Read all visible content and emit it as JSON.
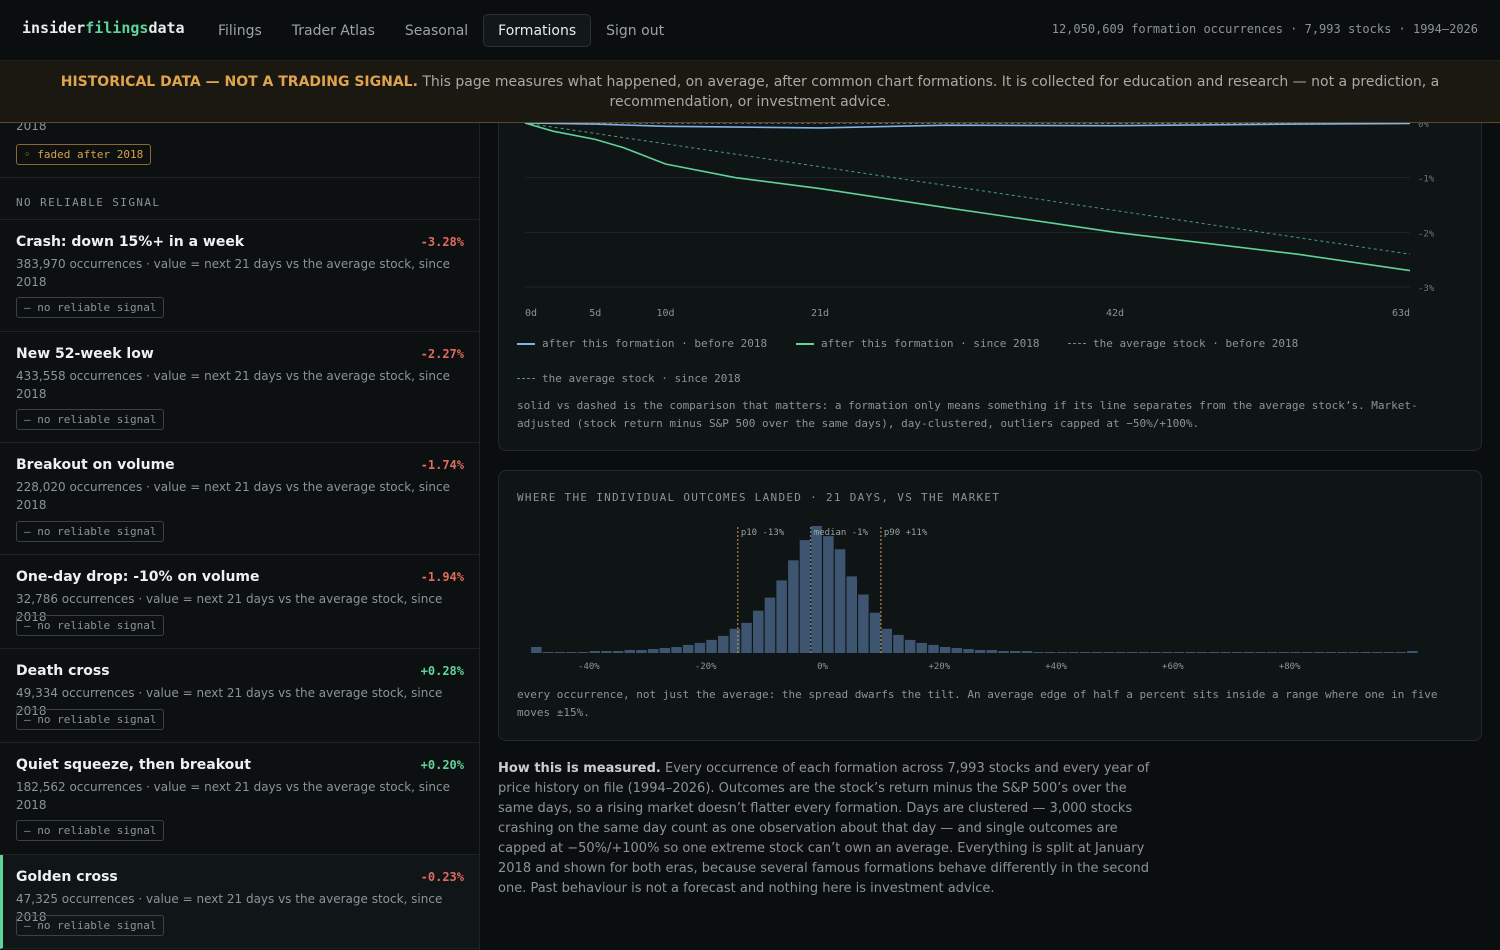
{
  "brand": {
    "prefix": "insider",
    "accent": "filings",
    "suffix": "data"
  },
  "nav": {
    "items": [
      {
        "label": "Filings"
      },
      {
        "label": "Trader Atlas"
      },
      {
        "label": "Seasonal"
      },
      {
        "label": "Formations"
      },
      {
        "label": "Sign out"
      }
    ],
    "active": "Formations"
  },
  "stats": "12,050,609 formation occurrences · 7,993 stocks · 1994–2026",
  "banner": {
    "strong": "HISTORICAL DATA — NOT A TRADING SIGNAL.",
    "text": " This page measures what happened, on average, after common chart formations. It is collected for education and research — not a prediction, a recommendation, or investment advice."
  },
  "fragment": {
    "text": "2018",
    "badge": "◦ faded after 2018"
  },
  "section_label": "NO RELIABLE SIGNAL",
  "items": [
    {
      "title": "Crash: down 15%+ in a week",
      "value": "-3.28%",
      "desc": "383,970 occurrences · value = next 21 days vs the average stock, since 2018",
      "badge": "— no reliable signal"
    },
    {
      "title": "New 52-week low",
      "value": "-2.27%",
      "desc": "433,558 occurrences · value = next 21 days vs the average stock, since 2018",
      "badge": "— no reliable signal"
    },
    {
      "title": "Breakout on volume",
      "value": "-1.74%",
      "desc": "228,020 occurrences · value = next 21 days vs the average stock, since 2018",
      "badge": "— no reliable signal"
    },
    {
      "title": "One-day drop: -10% on volume",
      "value": "-1.94%",
      "desc": "32,786 occurrences · value = next 21 days vs the average stock, since 2018",
      "badge": "— no reliable signal"
    },
    {
      "title": "Death cross",
      "value": "+0.28%",
      "desc": "49,334 occurrences · value = next 21 days vs the average stock, since 2018",
      "badge": "— no reliable signal"
    },
    {
      "title": "Quiet squeeze, then breakout",
      "value": "+0.20%",
      "desc": "182,562 occurrences · value = next 21 days vs the average stock, since 2018",
      "badge": "— no reliable signal"
    },
    {
      "title": "Golden cross",
      "value": "-0.23%",
      "desc": "47,325 occurrences · value = next 21 days vs the average stock, since 2018",
      "badge": "— no reliable signal"
    }
  ],
  "colors": {
    "accent": "#5fd39a",
    "negative": "#e06b5f",
    "warning": "#e0a44e",
    "before_line": "#7fb3e6",
    "since_line": "#5fd39a",
    "bars": "#3d5570"
  },
  "chart_data": [
    {
      "type": "line",
      "x_ticks": [
        "0d",
        "5d",
        "10d",
        "21d",
        "42d",
        "63d"
      ],
      "x_tick_values": [
        0,
        5,
        10,
        21,
        42,
        63
      ],
      "y_ticks": [
        "0%",
        "-1%",
        "-2%",
        "-3%"
      ],
      "y_tick_values": [
        0,
        -1,
        -2,
        -3
      ],
      "ylim": [
        -3,
        0
      ],
      "xlim": [
        0,
        63
      ],
      "series": [
        {
          "name": "after this formation · before 2018",
          "style": "solid",
          "color": "#7fb3e6",
          "x": [
            0,
            5,
            10,
            21,
            30,
            42,
            55,
            63
          ],
          "y": [
            0,
            -0.02,
            -0.06,
            -0.09,
            -0.04,
            -0.05,
            -0.02,
            -0.01
          ]
        },
        {
          "name": "after this formation · since 2018",
          "style": "solid",
          "color": "#5fd39a",
          "x": [
            0,
            2,
            5,
            7,
            10,
            15,
            21,
            30,
            42,
            55,
            63
          ],
          "y": [
            0,
            -0.15,
            -0.3,
            -0.45,
            -0.75,
            -1.0,
            -1.2,
            -1.55,
            -2.0,
            -2.4,
            -2.7
          ]
        },
        {
          "name": "the average stock · before 2018",
          "style": "dashed",
          "color": "#6e8a96",
          "x": [
            0,
            63
          ],
          "y": [
            0,
            -0.01
          ]
        },
        {
          "name": "the average stock · since 2018",
          "style": "dashed",
          "color": "#4f9a78",
          "x": [
            0,
            63
          ],
          "y": [
            0,
            -2.4
          ]
        }
      ],
      "note": "solid vs dashed is the comparison that matters: a formation only means something if its line separates from the average stock’s. Market-adjusted (stock return minus S&P 500 over the same days), day-clustered, outliers capped at −50%/+100%."
    },
    {
      "type": "bar",
      "title": "WHERE THE INDIVIDUAL OUTCOMES LANDED · 21 DAYS, VS THE MARKET",
      "x_ticks": [
        "-40%",
        "-20%",
        "0%",
        "+20%",
        "+40%",
        "+60%",
        "+80%"
      ],
      "x_tick_values": [
        -40,
        -20,
        0,
        20,
        40,
        60,
        80
      ],
      "bin_start": -50,
      "bin_width": 2,
      "values": [
        6,
        1,
        1,
        1,
        1,
        2,
        2,
        2,
        3,
        3,
        4,
        5,
        6,
        8,
        10,
        13,
        17,
        24,
        30,
        42,
        55,
        72,
        92,
        112,
        126,
        116,
        103,
        76,
        58,
        40,
        24,
        18,
        13,
        10,
        8,
        6,
        5,
        4,
        3,
        3,
        2,
        2,
        2,
        1,
        1,
        1,
        1,
        1,
        1,
        1,
        1,
        1,
        1,
        1,
        1,
        1,
        1,
        1,
        1,
        1,
        1,
        1,
        1,
        1,
        1,
        1,
        1,
        1,
        1,
        1,
        1,
        1,
        1,
        1,
        1,
        2
      ],
      "markers": [
        {
          "label": "p10 -13%",
          "x": -14.5
        },
        {
          "label": "median -1%",
          "x": -2
        },
        {
          "label": "p90 +11%",
          "x": 10
        }
      ],
      "note": "every occurrence, not just the average: the spread dwarfs the tilt. An average edge of half a percent sits inside a range where one in five moves ±15%."
    }
  ],
  "measured": {
    "strong": "How this is measured.",
    "text": " Every occurrence of each formation across 7,993 stocks and every year of price history on file (1994–2026). Outcomes are the stock’s return minus the S&P 500’s over the same days, so a rising market doesn’t flatter every formation. Days are clustered — 3,000 stocks crashing on the same day count as one observation about that day — and single outcomes are capped at −50%/+100% so one extreme stock can’t own an average. Everything is split at January 2018 and shown for both eras, because several famous formations behave differently in the second one. Past behaviour is not a forecast and nothing here is investment advice."
  }
}
